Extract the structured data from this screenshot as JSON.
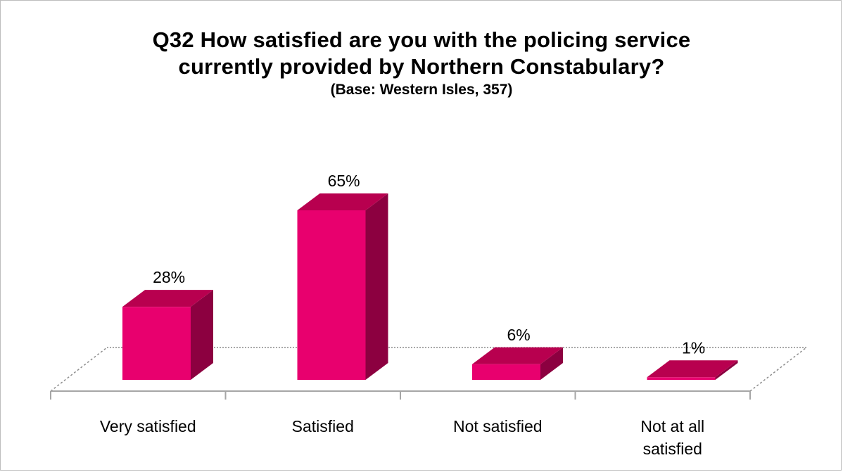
{
  "chart_data": {
    "type": "bar",
    "title_lines": [
      "Q32 How satisfied are you with the policing service",
      "currently provided by Northern Constabulary?"
    ],
    "subtitle": "(Base: Western Isles, 357)",
    "categories": [
      [
        "Very satisfied"
      ],
      [
        "Satisfied"
      ],
      [
        "Not satisfied"
      ],
      [
        "Not at all",
        "satisfied"
      ]
    ],
    "values": [
      28,
      65,
      6,
      1
    ],
    "value_labels": [
      "28%",
      "65%",
      "6%",
      "1%"
    ],
    "ylim": [
      0,
      65
    ],
    "colors": {
      "front": "#e8006e",
      "top": "#b8004f",
      "side": "#8c0040",
      "grid": "#8c8c8c",
      "axis": "#a6a6a6"
    },
    "three_d": true
  }
}
